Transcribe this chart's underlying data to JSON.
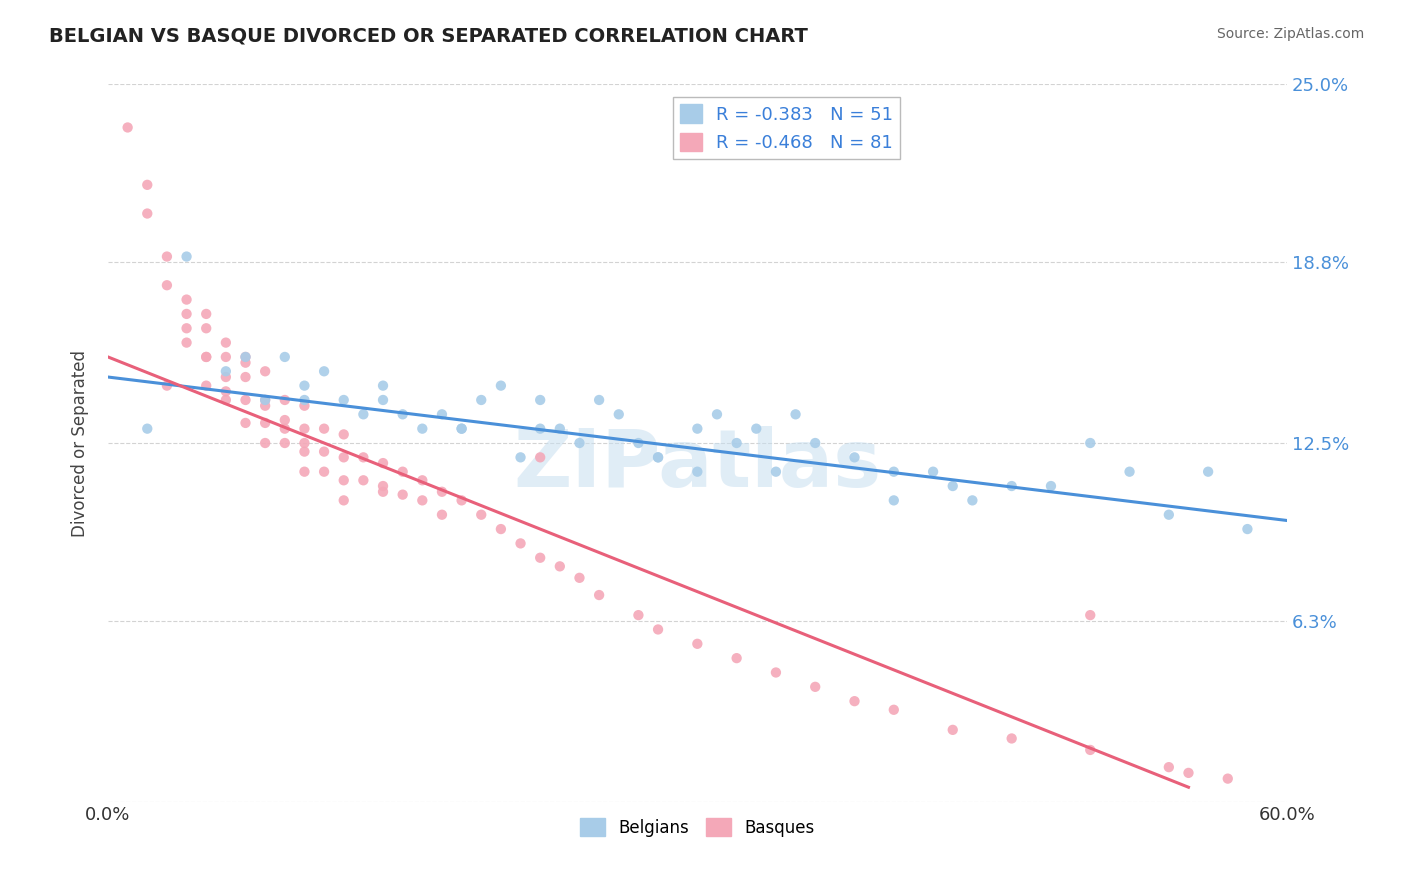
{
  "title": "BELGIAN VS BASQUE DIVORCED OR SEPARATED CORRELATION CHART",
  "source": "Source: ZipAtlas.com",
  "ylabel": "Divorced or Separated",
  "xlim": [
    0.0,
    0.6
  ],
  "ylim": [
    0.0,
    0.25
  ],
  "y_ticks": [
    0.0,
    0.063,
    0.125,
    0.188,
    0.25
  ],
  "y_tick_labels_right": [
    "",
    "6.3%",
    "12.5%",
    "18.8%",
    "25.0%"
  ],
  "belgian_color": "#a8cce8",
  "basque_color": "#f4a8b8",
  "belgian_line_color": "#4a90d9",
  "basque_line_color": "#e8607a",
  "legend_label1": "R = -0.383   N = 51",
  "legend_label2": "R = -0.468   N = 81",
  "legend_sublabel1": "Belgians",
  "legend_sublabel2": "Basques",
  "watermark": "ZIPatlas",
  "background_color": "#ffffff",
  "grid_color": "#c8c8c8",
  "belgian_line_x0": 0.0,
  "belgian_line_y0": 0.148,
  "belgian_line_x1": 0.6,
  "belgian_line_y1": 0.098,
  "basque_line_x0": 0.0,
  "basque_line_y0": 0.155,
  "basque_line_x1": 0.55,
  "basque_line_y1": 0.005,
  "belgian_x": [
    0.02,
    0.04,
    0.06,
    0.07,
    0.08,
    0.09,
    0.1,
    0.11,
    0.12,
    0.13,
    0.14,
    0.15,
    0.16,
    0.17,
    0.18,
    0.19,
    0.2,
    0.21,
    0.22,
    0.23,
    0.24,
    0.25,
    0.26,
    0.27,
    0.28,
    0.3,
    0.31,
    0.32,
    0.33,
    0.34,
    0.35,
    0.36,
    0.38,
    0.4,
    0.4,
    0.42,
    0.43,
    0.44,
    0.46,
    0.48,
    0.5,
    0.52,
    0.54,
    0.56,
    0.58,
    0.28,
    0.3,
    0.22,
    0.18,
    0.14,
    0.1
  ],
  "belgian_y": [
    0.13,
    0.19,
    0.15,
    0.155,
    0.14,
    0.155,
    0.145,
    0.15,
    0.14,
    0.135,
    0.145,
    0.135,
    0.13,
    0.135,
    0.13,
    0.14,
    0.145,
    0.12,
    0.14,
    0.13,
    0.125,
    0.14,
    0.135,
    0.125,
    0.12,
    0.13,
    0.135,
    0.125,
    0.13,
    0.115,
    0.135,
    0.125,
    0.12,
    0.115,
    0.105,
    0.115,
    0.11,
    0.105,
    0.11,
    0.11,
    0.125,
    0.115,
    0.1,
    0.115,
    0.095,
    0.12,
    0.115,
    0.13,
    0.13,
    0.14,
    0.14
  ],
  "basque_x": [
    0.01,
    0.02,
    0.02,
    0.03,
    0.03,
    0.04,
    0.04,
    0.04,
    0.05,
    0.05,
    0.05,
    0.05,
    0.06,
    0.06,
    0.06,
    0.06,
    0.07,
    0.07,
    0.07,
    0.07,
    0.08,
    0.08,
    0.08,
    0.08,
    0.09,
    0.09,
    0.09,
    0.1,
    0.1,
    0.1,
    0.1,
    0.11,
    0.11,
    0.11,
    0.12,
    0.12,
    0.12,
    0.13,
    0.13,
    0.14,
    0.14,
    0.15,
    0.15,
    0.16,
    0.16,
    0.17,
    0.17,
    0.18,
    0.19,
    0.2,
    0.21,
    0.22,
    0.22,
    0.23,
    0.24,
    0.25,
    0.27,
    0.28,
    0.3,
    0.32,
    0.34,
    0.36,
    0.38,
    0.4,
    0.43,
    0.46,
    0.5,
    0.54,
    0.55,
    0.57,
    0.03,
    0.04,
    0.05,
    0.06,
    0.07,
    0.08,
    0.09,
    0.1,
    0.12,
    0.14,
    0.5
  ],
  "basque_y": [
    0.235,
    0.215,
    0.205,
    0.19,
    0.18,
    0.175,
    0.165,
    0.16,
    0.17,
    0.165,
    0.155,
    0.145,
    0.16,
    0.155,
    0.148,
    0.14,
    0.155,
    0.148,
    0.14,
    0.132,
    0.15,
    0.14,
    0.132,
    0.125,
    0.14,
    0.133,
    0.125,
    0.138,
    0.13,
    0.122,
    0.115,
    0.13,
    0.122,
    0.115,
    0.128,
    0.12,
    0.112,
    0.12,
    0.112,
    0.118,
    0.11,
    0.115,
    0.107,
    0.112,
    0.105,
    0.108,
    0.1,
    0.105,
    0.1,
    0.095,
    0.09,
    0.085,
    0.12,
    0.082,
    0.078,
    0.072,
    0.065,
    0.06,
    0.055,
    0.05,
    0.045,
    0.04,
    0.035,
    0.032,
    0.025,
    0.022,
    0.018,
    0.012,
    0.01,
    0.008,
    0.145,
    0.17,
    0.155,
    0.143,
    0.153,
    0.138,
    0.13,
    0.125,
    0.105,
    0.108,
    0.065
  ]
}
